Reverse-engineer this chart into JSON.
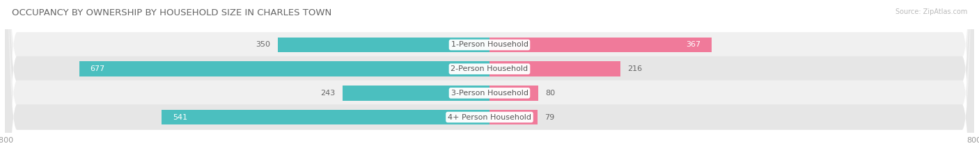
{
  "title": "OCCUPANCY BY OWNERSHIP BY HOUSEHOLD SIZE IN CHARLES TOWN",
  "source": "Source: ZipAtlas.com",
  "categories": [
    "1-Person Household",
    "2-Person Household",
    "3-Person Household",
    "4+ Person Household"
  ],
  "owner_values": [
    350,
    677,
    243,
    541
  ],
  "renter_values": [
    367,
    216,
    80,
    79
  ],
  "owner_color": "#4bbfbf",
  "renter_color": "#f07a9a",
  "row_bg_odd": "#f0f0f0",
  "row_bg_even": "#e6e6e6",
  "axis_min": -800,
  "axis_max": 800,
  "bar_height": 0.62,
  "title_fontsize": 9.5,
  "source_fontsize": 7,
  "value_fontsize": 8,
  "cat_fontsize": 8,
  "tick_fontsize": 8,
  "legend_fontsize": 8.5,
  "owner_inside_threshold": 400,
  "renter_inside_threshold": 300
}
